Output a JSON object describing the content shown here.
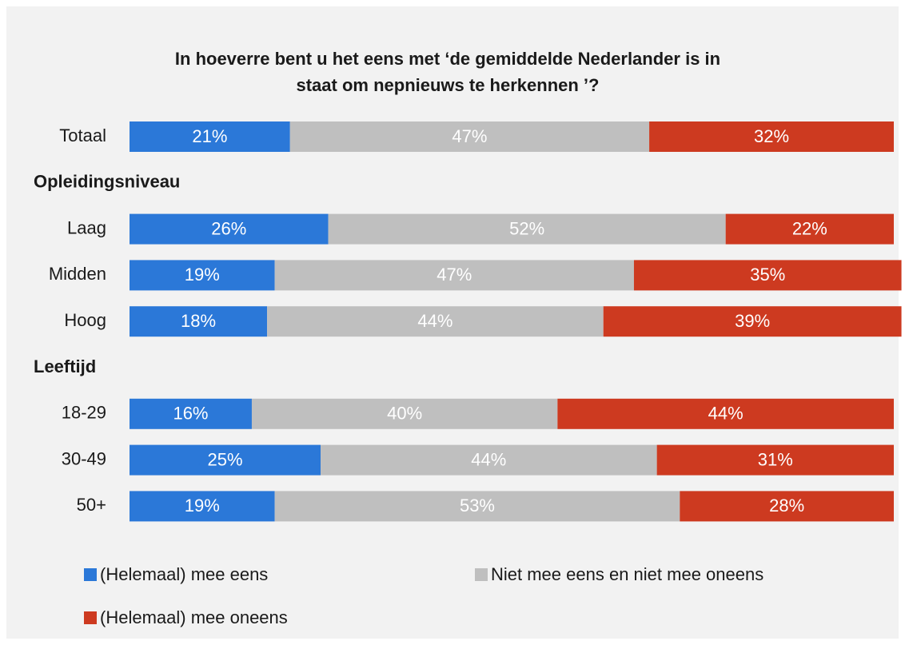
{
  "chart_data": {
    "type": "stacked-barh",
    "title": [
      "In hoeverre bent u het eens met ‘de gemiddelde Nederlander is in",
      "staat om nepnieuws te herkennen ’?"
    ],
    "categories": [
      "Totaal",
      "Opleidingsniveau",
      "Laag",
      "Midden",
      "Hoog",
      "Leeftijd",
      "18-29",
      "30-49",
      "50+"
    ],
    "xlim": [
      0,
      100
    ],
    "series": [
      {
        "name": "(Helemaal) mee eens",
        "color": "#2b78d8",
        "values": [
          21,
          null,
          26,
          19,
          18,
          null,
          16,
          25,
          19
        ],
        "value_labels": [
          "21%",
          null,
          "26%",
          "19%",
          "18%",
          null,
          "16%",
          "25%",
          "19%"
        ]
      },
      {
        "name": "Niet mee eens en niet mee oneens",
        "color": "#bfbfbf",
        "values": [
          47,
          null,
          52,
          47,
          44,
          null,
          40,
          44,
          53
        ],
        "value_labels": [
          "47%",
          null,
          "52%",
          "47%",
          "44%",
          null,
          "40%",
          "44%",
          "53%"
        ]
      },
      {
        "name": "(Helemaal) mee oneens",
        "color": "#cd3a20",
        "values": [
          32,
          null,
          22,
          35,
          39,
          null,
          44,
          31,
          28
        ],
        "value_labels": [
          "32%",
          null,
          "22%",
          "35%",
          "39%",
          null,
          "44%",
          "31%",
          "28%"
        ]
      }
    ]
  }
}
